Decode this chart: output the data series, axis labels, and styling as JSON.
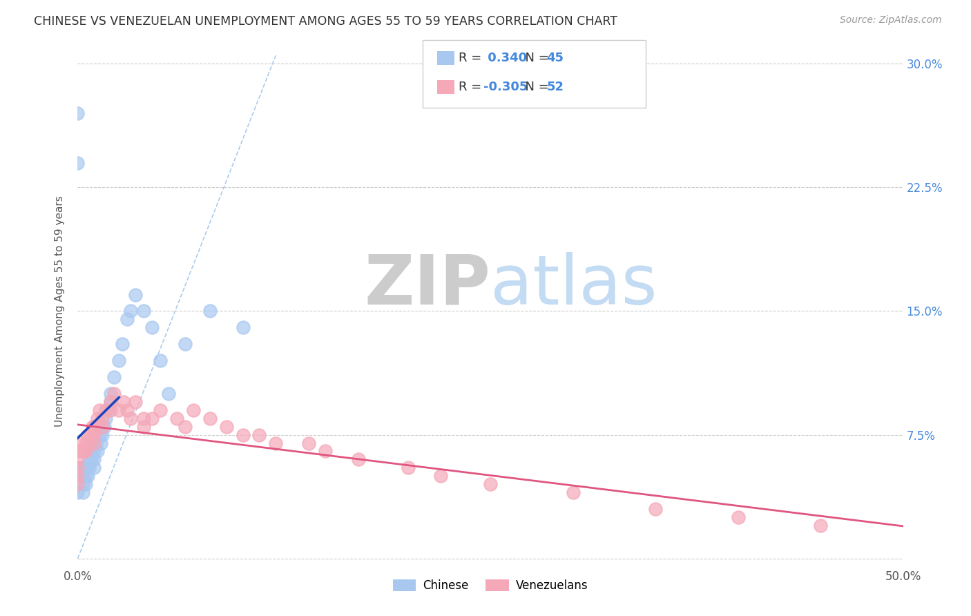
{
  "title": "CHINESE VS VENEZUELAN UNEMPLOYMENT AMONG AGES 55 TO 59 YEARS CORRELATION CHART",
  "source": "Source: ZipAtlas.com",
  "ylabel": "Unemployment Among Ages 55 to 59 years",
  "xlim": [
    0.0,
    0.5
  ],
  "ylim": [
    -0.005,
    0.305
  ],
  "xticks": [
    0.0,
    0.1,
    0.2,
    0.3,
    0.4,
    0.5
  ],
  "xticklabels": [
    "0.0%",
    "",
    "",
    "",
    "",
    "50.0%"
  ],
  "yticks": [
    0.0,
    0.075,
    0.15,
    0.225,
    0.3
  ],
  "yticklabels": [
    "",
    "7.5%",
    "15.0%",
    "22.5%",
    "30.0%"
  ],
  "chinese_R": 0.34,
  "chinese_N": 45,
  "venezuelan_R": -0.305,
  "venezuelan_N": 52,
  "chinese_color": "#a8c8f0",
  "venezuelan_color": "#f4a8b8",
  "chinese_line_color": "#1a44bb",
  "venezuelan_line_color": "#e05580",
  "ref_line_color": "#aaccee",
  "background_color": "#ffffff",
  "grid_color": "#cccccc",
  "title_color": "#333333",
  "watermark_zip_color": "#bbbbbb",
  "watermark_atlas_color": "#aaccee",
  "tick_color": "#4488dd",
  "chinese_x": [
    0.0,
    0.0,
    0.0,
    0.0,
    0.0,
    0.002,
    0.003,
    0.003,
    0.003,
    0.004,
    0.005,
    0.005,
    0.006,
    0.006,
    0.007,
    0.007,
    0.008,
    0.008,
    0.009,
    0.01,
    0.01,
    0.01,
    0.011,
    0.012,
    0.013,
    0.014,
    0.015,
    0.016,
    0.017,
    0.018,
    0.02,
    0.02,
    0.022,
    0.025,
    0.027,
    0.03,
    0.032,
    0.035,
    0.04,
    0.045,
    0.05,
    0.055,
    0.065,
    0.08,
    0.1
  ],
  "chinese_y": [
    0.27,
    0.24,
    0.055,
    0.05,
    0.04,
    0.055,
    0.05,
    0.045,
    0.04,
    0.055,
    0.05,
    0.045,
    0.055,
    0.05,
    0.06,
    0.055,
    0.065,
    0.06,
    0.07,
    0.065,
    0.06,
    0.055,
    0.07,
    0.065,
    0.075,
    0.07,
    0.075,
    0.08,
    0.085,
    0.09,
    0.1,
    0.095,
    0.11,
    0.12,
    0.13,
    0.145,
    0.15,
    0.16,
    0.15,
    0.14,
    0.12,
    0.1,
    0.13,
    0.15,
    0.14
  ],
  "venezuelan_x": [
    0.0,
    0.0,
    0.0,
    0.0,
    0.0,
    0.002,
    0.003,
    0.004,
    0.005,
    0.005,
    0.006,
    0.007,
    0.008,
    0.009,
    0.01,
    0.01,
    0.01,
    0.012,
    0.013,
    0.015,
    0.015,
    0.017,
    0.02,
    0.02,
    0.022,
    0.025,
    0.028,
    0.03,
    0.032,
    0.035,
    0.04,
    0.04,
    0.045,
    0.05,
    0.06,
    0.065,
    0.07,
    0.08,
    0.09,
    0.1,
    0.11,
    0.12,
    0.14,
    0.15,
    0.17,
    0.2,
    0.22,
    0.25,
    0.3,
    0.35,
    0.4,
    0.45
  ],
  "venezuelan_y": [
    0.065,
    0.06,
    0.055,
    0.05,
    0.045,
    0.065,
    0.07,
    0.065,
    0.07,
    0.065,
    0.075,
    0.07,
    0.075,
    0.08,
    0.08,
    0.075,
    0.07,
    0.085,
    0.09,
    0.085,
    0.08,
    0.09,
    0.095,
    0.09,
    0.1,
    0.09,
    0.095,
    0.09,
    0.085,
    0.095,
    0.085,
    0.08,
    0.085,
    0.09,
    0.085,
    0.08,
    0.09,
    0.085,
    0.08,
    0.075,
    0.075,
    0.07,
    0.07,
    0.065,
    0.06,
    0.055,
    0.05,
    0.045,
    0.04,
    0.03,
    0.025,
    0.02
  ]
}
